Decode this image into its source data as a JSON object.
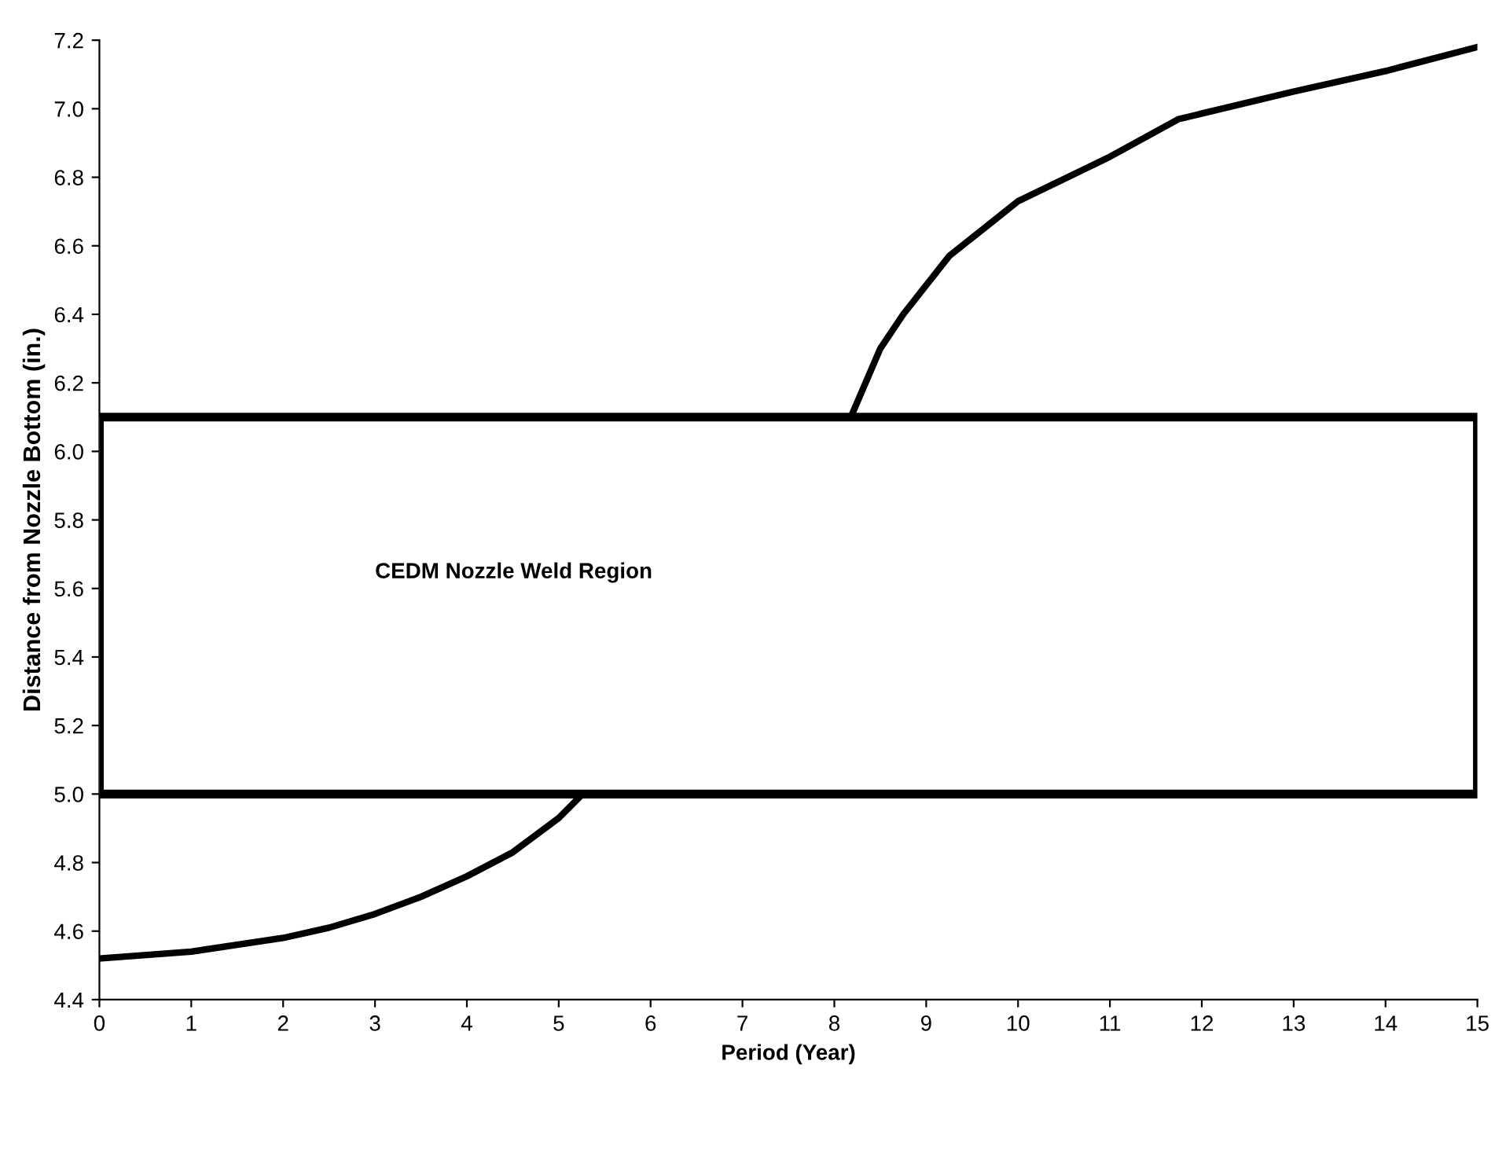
{
  "chart_data": {
    "type": "line",
    "xlabel": "Period (Year)",
    "ylabel": "Distance from Nozzle Bottom (in.)",
    "x": [
      0,
      1,
      2,
      2.5,
      3,
      3.5,
      4,
      4.5,
      5,
      5.26,
      6,
      7,
      8,
      8.18,
      8.5,
      8.75,
      9.25,
      10,
      11,
      11.75,
      13,
      14,
      15
    ],
    "series": [
      {
        "color": "#000000",
        "values": [
          4.52,
          4.54,
          4.58,
          4.61,
          4.65,
          4.7,
          4.76,
          4.83,
          4.93,
          5.0,
          null,
          null,
          null,
          6.1,
          6.3,
          6.4,
          6.57,
          6.73,
          6.86,
          6.97,
          7.05,
          7.11,
          7.18
        ]
      }
    ],
    "xlim": [
      0,
      15
    ],
    "ylim": [
      4.4,
      7.2
    ],
    "xticks": [
      0,
      1,
      2,
      3,
      4,
      5,
      6,
      7,
      8,
      9,
      10,
      11,
      12,
      13,
      14,
      15
    ],
    "yticks": [
      4.4,
      4.6,
      4.8,
      {
        "value": 5.0,
        "label": "5.0"
      },
      5.2,
      5.4,
      5.6,
      5.8,
      {
        "value": 6.0,
        "label": "6.0"
      },
      6.2,
      6.4,
      6.6,
      6.8,
      {
        "value": 7.0,
        "label": "7.0"
      },
      7.2
    ],
    "bands": [
      {
        "axis": "y",
        "from": 5.0,
        "to": 6.1,
        "label": "CEDM Nozzle Weld Region",
        "color": "#000000"
      }
    ],
    "grid": false,
    "legend": false,
    "marker": "none",
    "line_style": "solid"
  }
}
